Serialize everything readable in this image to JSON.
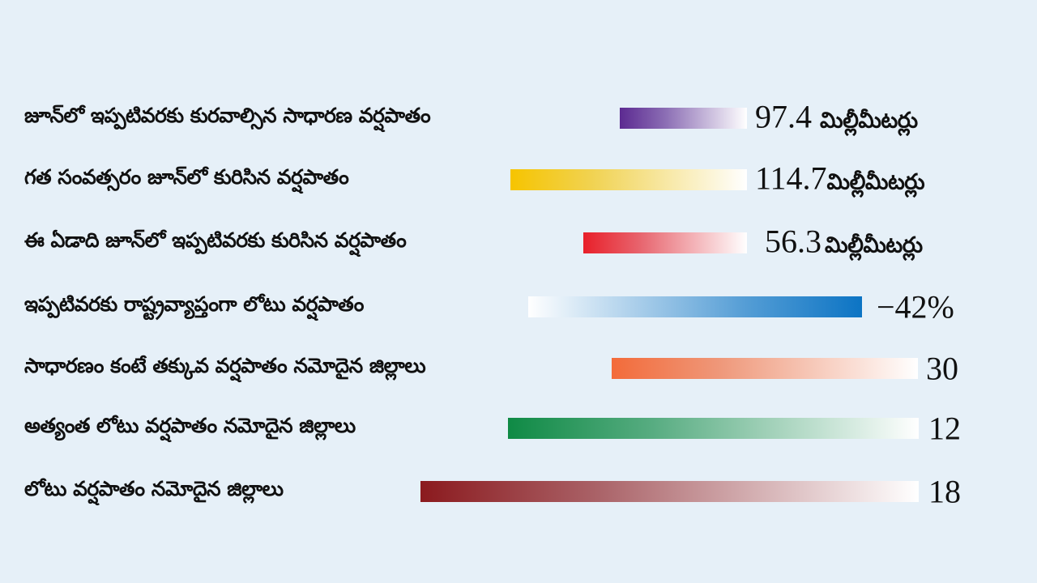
{
  "rows": [
    {
      "label": "జూన్‌లో ఇప్పటివరకు కురవాల్సిన సాధారణ వర్షపాతం",
      "value": "97.4",
      "unit": "మిల్లీమీటర్లు",
      "color": "#5c2a91"
    },
    {
      "label": "గత సంవత్సరం జూన్‌లో కురిసిన వర్షపాతం",
      "value": "114.7",
      "unit": "మిల్లీమీటర్లు",
      "color": "#f6c400"
    },
    {
      "label": "ఈ ఏడాది జూన్‌లో ఇప్పటివరకు కురిసిన వర్షపాతం",
      "value": "56.3",
      "unit": "మిల్లీమీటర్లు",
      "color": "#e8202a"
    },
    {
      "label": "ఇప్పటివరకు రాష్ట్రవ్యాప్తంగా లోటు వర్షపాతం",
      "value": "−42%",
      "unit": "",
      "color": "#0c74c4"
    },
    {
      "label": "సాధారణం కంటే తక్కువ వర్షపాతం నమోదైన జిల్లాలు",
      "value": "30",
      "unit": "",
      "color": "#f36b3a"
    },
    {
      "label": "అత్యంత లోటు వర్షపాతం నమోదైన జిల్లాలు",
      "value": "12",
      "unit": "",
      "color": "#0f8a45"
    },
    {
      "label": "లోటు వర్షపాతం నమోదైన జిల్లాలు",
      "value": "18",
      "unit": "",
      "color": "#8b1a1e"
    }
  ]
}
